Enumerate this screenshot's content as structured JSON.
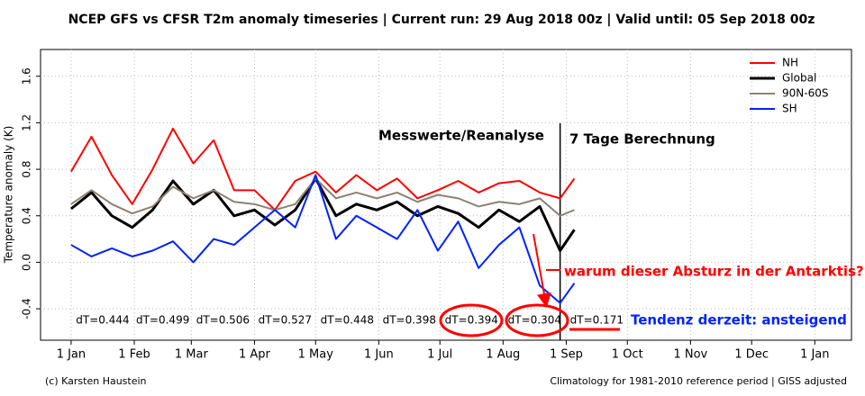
{
  "chart_data": {
    "type": "line",
    "title": "NCEP GFS vs CFSR T2m anomaly timeseries | Current run: 29 Aug 2018 00z | Valid until: 05 Sep 2018 00z",
    "y_label": "Temperature anomaly (K)",
    "x": [
      1,
      11,
      21,
      31,
      41,
      51,
      61,
      71,
      81,
      91,
      101,
      111,
      121,
      131,
      141,
      151,
      161,
      171,
      181,
      191,
      201,
      211,
      221,
      231,
      241,
      248
    ],
    "series": [
      {
        "name": "NH",
        "color": "#ff0000",
        "values": [
          0.78,
          1.08,
          0.75,
          0.5,
          0.8,
          1.15,
          0.85,
          1.05,
          0.62,
          0.62,
          0.45,
          0.7,
          0.78,
          0.6,
          0.75,
          0.62,
          0.72,
          0.55,
          0.62,
          0.7,
          0.6,
          0.68,
          0.7,
          0.6,
          0.55,
          0.72
        ]
      },
      {
        "name": "Global",
        "color": "#000000",
        "values": [
          0.46,
          0.6,
          0.4,
          0.3,
          0.45,
          0.7,
          0.5,
          0.62,
          0.4,
          0.45,
          0.32,
          0.45,
          0.72,
          0.4,
          0.5,
          0.45,
          0.52,
          0.4,
          0.48,
          0.42,
          0.3,
          0.45,
          0.35,
          0.48,
          0.1,
          0.28
        ]
      },
      {
        "name": "90N-60S",
        "color": "#8c8273",
        "values": [
          0.5,
          0.62,
          0.5,
          0.42,
          0.48,
          0.65,
          0.55,
          0.62,
          0.52,
          0.5,
          0.45,
          0.5,
          0.72,
          0.55,
          0.6,
          0.55,
          0.6,
          0.52,
          0.58,
          0.55,
          0.48,
          0.52,
          0.5,
          0.55,
          0.4,
          0.45
        ]
      },
      {
        "name": "SH",
        "color": "#0022ff",
        "values": [
          0.15,
          0.05,
          0.12,
          0.05,
          0.1,
          0.18,
          0.0,
          0.2,
          0.15,
          0.3,
          0.45,
          0.3,
          0.75,
          0.2,
          0.4,
          0.3,
          0.2,
          0.45,
          0.1,
          0.35,
          -0.05,
          0.15,
          0.3,
          -0.2,
          -0.35,
          -0.18
        ]
      }
    ],
    "xlim": [
      -14,
      384
    ],
    "xticks": [
      {
        "value": 1,
        "label": "1 Jan"
      },
      {
        "value": 32,
        "label": "1 Feb"
      },
      {
        "value": 60,
        "label": "1 Mar"
      },
      {
        "value": 91,
        "label": "1 Apr"
      },
      {
        "value": 121,
        "label": "1 May"
      },
      {
        "value": 152,
        "label": "1 Jun"
      },
      {
        "value": 182,
        "label": "1 Jul"
      },
      {
        "value": 213,
        "label": "1 Aug"
      },
      {
        "value": 244,
        "label": "1 Sep"
      },
      {
        "value": 274,
        "label": "1 Oct"
      },
      {
        "value": 305,
        "label": "1 Nov"
      },
      {
        "value": 335,
        "label": "1 Dec"
      },
      {
        "value": 366,
        "label": "1 Jan"
      }
    ],
    "ylim": [
      -0.67,
      1.83
    ],
    "yticks": [
      -0.4,
      {
        "value": 0,
        "label": "0.0"
      },
      0.4,
      0.8,
      1.2,
      1.6
    ],
    "grid": true,
    "forecast_start_x": 241,
    "monthly_labels": [
      "dT=0.444",
      "dT=0.499",
      "dT=0.506",
      "dT=0.527",
      "dT=0.448",
      "dT=0.398",
      "dT=0.394",
      "dT=0.304",
      "dT=0.171"
    ],
    "annotations": [
      "Messwerte/Reanalyse",
      "7 Tage Berechnung",
      "warum dieser Absturz in der Antarktis?",
      "Tendenz derzeit: ansteigend"
    ],
    "footer_left": "(c) Karsten Haustein",
    "footer_right": "Climatology for 1981-2010 reference period | GISS adjusted"
  }
}
